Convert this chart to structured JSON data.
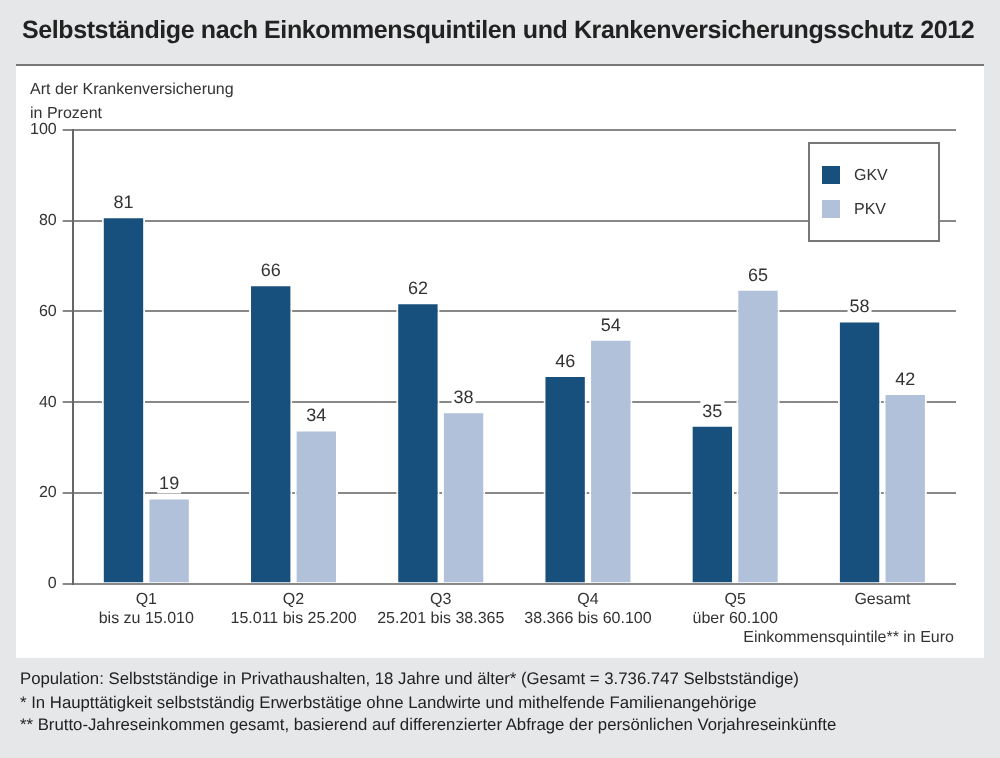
{
  "chart_data": {
    "type": "bar",
    "title": "Selbstständige nach Einkommensquintilen und Krankenversicherungsschutz 2012",
    "ylabel": "Art der Krankenversicherung\nin Prozent",
    "xlabel": "Einkommensquintile** in Euro",
    "categories": [
      "Q1\nbis zu 15.010",
      "Q2\n15.011 bis 25.200",
      "Q3\n25.201 bis 38.365",
      "Q4\n38.366 bis 60.100",
      "Q5\nüber 60.100",
      "Gesamt"
    ],
    "series": [
      {
        "name": "GKV",
        "color": "#17507c",
        "values": [
          81,
          66,
          62,
          46,
          35,
          58
        ]
      },
      {
        "name": "PKV",
        "color": "#b0c1d9",
        "values": [
          19,
          34,
          38,
          54,
          65,
          42
        ]
      }
    ],
    "ylim": [
      0,
      100
    ],
    "yticks": [
      0,
      20,
      40,
      60,
      80,
      100
    ],
    "grid": "y",
    "legend": "top right",
    "data_labels": true,
    "annotations": [
      "Population: Selbstständige in Privathaushalten, 18 Jahre und älter* (Gesamt = 3.736.747 Selbstständige)",
      "*  In Haupttätigkeit selbstständig Erwerbstätige ohne Landwirte und mithelfende Familienangehörige",
      "** Brutto-Jahreseinkommen gesamt, basierend auf differenzierter Abfrage der persönlichen Vorjahreseinkünfte"
    ]
  }
}
